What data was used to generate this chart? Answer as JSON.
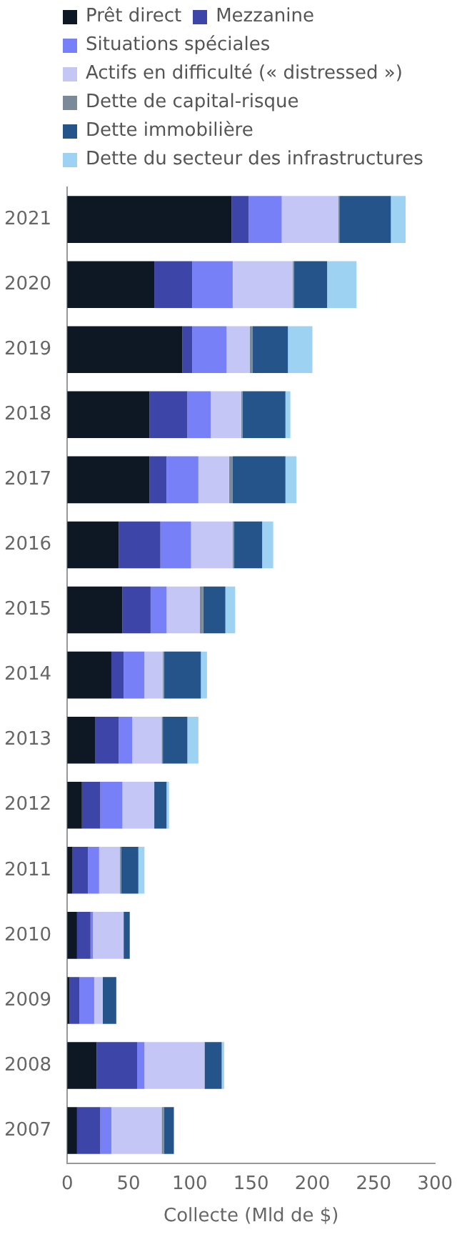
{
  "chart_data": {
    "type": "bar",
    "orientation": "horizontal",
    "stacked": true,
    "xlabel": "Collecte (Mld de $)",
    "categories": [
      "2021",
      "2020",
      "2019",
      "2018",
      "2017",
      "2016",
      "2015",
      "2014",
      "2013",
      "2012",
      "2011",
      "2010",
      "2009",
      "2008",
      "2007"
    ],
    "series": [
      {
        "name": "Prêt direct",
        "color": "#0d1824",
        "values": [
          134,
          71,
          94,
          67,
          67,
          42,
          45,
          36,
          23,
          12,
          4,
          8,
          2,
          24,
          8
        ]
      },
      {
        "name": "Mezzanine",
        "color": "#3d45a8",
        "values": [
          14,
          31,
          8,
          31,
          14,
          34,
          23,
          10,
          19,
          15,
          13,
          11,
          8,
          33,
          19
        ]
      },
      {
        "name": "Situations spéciales",
        "color": "#7880f8",
        "values": [
          27,
          33,
          28,
          19,
          26,
          25,
          13,
          17,
          11,
          18,
          9,
          2,
          12,
          6,
          9
        ]
      },
      {
        "name": "Actifs en difficulté (« distressed »)",
        "color": "#c4c6f5",
        "values": [
          46,
          49,
          19,
          25,
          25,
          34,
          27,
          15,
          24,
          26,
          17,
          25,
          7,
          49,
          41
        ]
      },
      {
        "name": "Dette de capital-risque",
        "color": "#7a8a99",
        "values": [
          1,
          1,
          2,
          1,
          3,
          1,
          3,
          1,
          1,
          0,
          1,
          0,
          0,
          0,
          2
        ]
      },
      {
        "name": "Dette immobilière",
        "color": "#24548a",
        "values": [
          42,
          27,
          29,
          35,
          43,
          23,
          18,
          30,
          20,
          10,
          14,
          5,
          11,
          14,
          8
        ]
      },
      {
        "name": "Dette du secteur des infrastructures",
        "color": "#9dd2f3",
        "values": [
          12,
          24,
          20,
          4,
          9,
          9,
          8,
          5,
          9,
          2,
          5,
          0,
          0,
          2,
          0
        ]
      }
    ],
    "xlim": [
      0,
      300
    ],
    "xticks": [
      0,
      50,
      100,
      150,
      200,
      250,
      300
    ],
    "grid": false,
    "legend": "top"
  }
}
